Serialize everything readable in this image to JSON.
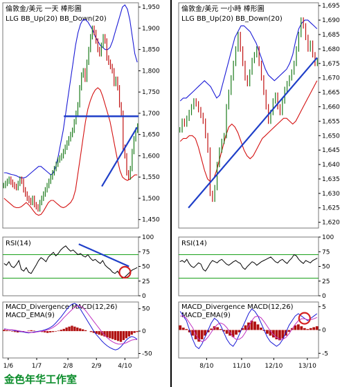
{
  "footer": "金色年华工作室",
  "chart_data": [
    {
      "type": "candlestick",
      "panel": "left-price",
      "title": "倫敦金/美元 一天 棒形圖",
      "indicators_label": "LLG  BB_Up(20)  BB_Down(20)",
      "ylim": [
        1430,
        1960
      ],
      "yticks": [
        "1,950",
        "1,900",
        "1,850",
        "1,800",
        "1,750",
        "1,700",
        "1,650",
        "1,600",
        "1,550",
        "1,500",
        "1,450"
      ],
      "ytick_values": [
        1950,
        1900,
        1850,
        1800,
        1750,
        1700,
        1650,
        1600,
        1550,
        1500,
        1450
      ],
      "x_tick_labels": [
        "1/6",
        "1/7",
        "2/8",
        "2/9",
        "4/10"
      ],
      "close": [
        1530,
        1535,
        1540,
        1545,
        1538,
        1532,
        1528,
        1525,
        1535,
        1545,
        1540,
        1520,
        1510,
        1500,
        1495,
        1490,
        1500,
        1485,
        1480,
        1475,
        1490,
        1500,
        1510,
        1520,
        1530,
        1540,
        1550,
        1560,
        1570,
        1580,
        1590,
        1595,
        1600,
        1610,
        1620,
        1630,
        1640,
        1650,
        1660,
        1680,
        1700,
        1720,
        1760,
        1790,
        1800,
        1780,
        1820,
        1850,
        1880,
        1900,
        1890,
        1870,
        1850,
        1840,
        1860,
        1880,
        1870,
        1830,
        1820,
        1810,
        1800,
        1770,
        1780,
        1760,
        1720,
        1700,
        1620,
        1600,
        1560,
        1550,
        1570,
        1610,
        1640,
        1660,
        1670
      ],
      "bb_upper": [
        1560,
        1560,
        1558,
        1556,
        1555,
        1553,
        1550,
        1548,
        1548,
        1550,
        1555,
        1560,
        1565,
        1570,
        1575,
        1575,
        1570,
        1565,
        1560,
        1555,
        1560,
        1575,
        1600,
        1630,
        1660,
        1700,
        1740,
        1780,
        1820,
        1860,
        1890,
        1910,
        1920,
        1920,
        1915,
        1905,
        1895,
        1880,
        1870,
        1860,
        1855,
        1850,
        1850,
        1855,
        1870,
        1890,
        1910,
        1930,
        1950,
        1955,
        1945,
        1920,
        1880,
        1840,
        1820
      ],
      "bb_lower": [
        1500,
        1495,
        1490,
        1485,
        1480,
        1478,
        1478,
        1480,
        1485,
        1490,
        1485,
        1478,
        1470,
        1463,
        1460,
        1462,
        1470,
        1480,
        1490,
        1495,
        1495,
        1490,
        1485,
        1480,
        1478,
        1480,
        1485,
        1490,
        1500,
        1520,
        1560,
        1600,
        1640,
        1680,
        1710,
        1730,
        1745,
        1755,
        1760,
        1755,
        1740,
        1720,
        1700,
        1680,
        1650,
        1620,
        1590,
        1565,
        1550,
        1545,
        1542,
        1545,
        1550,
        1555,
        1555
      ],
      "annotations": [
        {
          "type": "horizontal-line",
          "y": 1693,
          "color": "#1f3fc8"
        },
        {
          "type": "trendline",
          "from": [
            0.73,
            1528
          ],
          "to": [
            0.99,
            1667
          ],
          "color": "#1f3fc8"
        }
      ]
    },
    {
      "type": "candlestick",
      "panel": "right-price",
      "title": "倫敦金/美元 一小時 棒形圖",
      "indicators_label": "LLG  BB_Up(20)  BB_Down(20)",
      "ylim": [
        1618,
        1696
      ],
      "yticks": [
        "1,695",
        "1,690",
        "1,685",
        "1,680",
        "1,675",
        "1,670",
        "1,665",
        "1,660",
        "1,655",
        "1,650",
        "1,645",
        "1,640",
        "1,635",
        "1,630",
        "1,625",
        "1,620"
      ],
      "ytick_values": [
        1695,
        1690,
        1685,
        1680,
        1675,
        1670,
        1665,
        1660,
        1655,
        1650,
        1645,
        1640,
        1635,
        1630,
        1625,
        1620
      ],
      "x_tick_labels": [
        "8/10",
        "11/10",
        "12/10",
        "13/10"
      ],
      "close": [
        1652,
        1655,
        1654,
        1656,
        1658,
        1660,
        1662,
        1661,
        1659,
        1657,
        1655,
        1650,
        1645,
        1630,
        1628,
        1632,
        1640,
        1645,
        1648,
        1650,
        1660,
        1665,
        1670,
        1675,
        1680,
        1685,
        1680,
        1675,
        1670,
        1668,
        1672,
        1676,
        1678,
        1680,
        1675,
        1670,
        1665,
        1660,
        1655,
        1658,
        1662,
        1664,
        1660,
        1658,
        1662,
        1666,
        1668,
        1670,
        1672,
        1675,
        1680,
        1685,
        1690,
        1688,
        1684,
        1680,
        1682,
        1678,
        1675,
        1676
      ],
      "bb_upper": [
        1662,
        1663,
        1663,
        1664,
        1665,
        1666,
        1667,
        1668,
        1669,
        1668,
        1667,
        1665,
        1663,
        1664,
        1668,
        1672,
        1676,
        1680,
        1684,
        1686,
        1688,
        1688,
        1687,
        1686,
        1684,
        1682,
        1679,
        1676,
        1673,
        1671,
        1670,
        1669,
        1670,
        1671,
        1672,
        1673,
        1675,
        1678,
        1683,
        1687,
        1689,
        1690,
        1690,
        1689,
        1688,
        1687
      ],
      "bb_lower": [
        1648,
        1649,
        1649,
        1650,
        1650,
        1649,
        1646,
        1642,
        1638,
        1635,
        1634,
        1635,
        1638,
        1642,
        1646,
        1650,
        1653,
        1654,
        1653,
        1651,
        1648,
        1645,
        1643,
        1642,
        1643,
        1645,
        1647,
        1649,
        1650,
        1651,
        1652,
        1653,
        1654,
        1655,
        1656,
        1656,
        1655,
        1654,
        1655,
        1657,
        1659,
        1661,
        1663,
        1665,
        1667,
        1669
      ],
      "annotations": [
        {
          "type": "trendline",
          "from": [
            0.07,
            1625
          ],
          "to": [
            0.99,
            1677
          ],
          "color": "#1f3fc8"
        }
      ]
    },
    {
      "type": "line",
      "panel": "left-rsi",
      "title": "RSI(14)",
      "ylim": [
        0,
        100
      ],
      "yticks": [
        "100",
        "75",
        "50",
        "25",
        "0"
      ],
      "ytick_values": [
        100,
        75,
        50,
        25,
        0
      ],
      "reference_lines": [
        70,
        30
      ],
      "values": [
        55,
        52,
        58,
        50,
        48,
        53,
        60,
        45,
        42,
        48,
        40,
        38,
        45,
        52,
        60,
        65,
        62,
        58,
        66,
        70,
        74,
        68,
        72,
        78,
        82,
        85,
        80,
        76,
        78,
        74,
        70,
        72,
        68,
        66,
        70,
        64,
        60,
        62,
        58,
        55,
        60,
        52,
        48,
        45,
        40,
        38,
        42,
        35,
        30,
        32,
        36,
        40,
        44,
        46,
        48
      ],
      "annotations": [
        {
          "type": "trendline",
          "from": [
            0.56,
            88
          ],
          "to": [
            0.93,
            50
          ],
          "color": "#1f3fc8"
        },
        {
          "type": "circle",
          "at": [
            0.9,
            40
          ],
          "color": "#d42020"
        }
      ]
    },
    {
      "type": "line",
      "panel": "right-rsi",
      "title": "RSI(14)",
      "ylim": [
        0,
        100
      ],
      "yticks": [
        "100",
        "75",
        "50",
        "25",
        "0"
      ],
      "ytick_values": [
        100,
        75,
        50,
        25,
        0
      ],
      "reference_lines": [
        70,
        30
      ],
      "values": [
        58,
        60,
        57,
        62,
        55,
        50,
        48,
        52,
        56,
        54,
        45,
        42,
        48,
        55,
        60,
        58,
        56,
        60,
        62,
        58,
        54,
        52,
        55,
        58,
        60,
        57,
        55,
        48,
        45,
        50,
        54,
        58,
        56,
        52,
        55,
        58,
        60,
        62,
        64,
        66,
        62,
        58,
        56,
        60,
        62,
        58,
        55,
        60,
        64,
        70,
        68,
        62,
        58,
        55,
        60,
        58,
        56,
        60,
        62,
        64
      ],
      "annotations": []
    },
    {
      "type": "bar+line",
      "panel": "left-macd",
      "labels": [
        "MACD_Divergence",
        "MACD(12,26)",
        "MACD_EMA(9)"
      ],
      "ylim": [
        -60,
        65
      ],
      "yticks": [
        "50",
        "0",
        "-50"
      ],
      "ytick_values": [
        50,
        0,
        -50
      ],
      "x_tick_labels": [
        "1/6",
        "1/7",
        "2/8",
        "2/9",
        "4/10"
      ],
      "histogram": [
        3,
        2,
        1,
        -1,
        -2,
        -3,
        -2,
        -1,
        0,
        1,
        2,
        1,
        0,
        -1,
        -2,
        -3,
        -4,
        -3,
        -2,
        -1,
        1,
        3,
        5,
        8,
        10,
        12,
        10,
        8,
        6,
        4,
        2,
        0,
        -2,
        -4,
        -6,
        -8,
        -10,
        -12,
        -14,
        -16,
        -18,
        -20,
        -22,
        -24,
        -20,
        -16,
        -12,
        -8,
        -4,
        -2
      ],
      "macd": [
        5,
        4,
        3,
        2,
        1,
        0,
        -1,
        -2,
        -3,
        -4,
        -3,
        -2,
        -1,
        0,
        1,
        3,
        5,
        8,
        12,
        18,
        25,
        32,
        40,
        48,
        55,
        60,
        62,
        58,
        50,
        40,
        30,
        20,
        10,
        0,
        -8,
        -15,
        -22,
        -28,
        -33,
        -37,
        -40,
        -42,
        -40,
        -35,
        -28,
        -20,
        -15,
        -12,
        -14,
        -18
      ],
      "signal": [
        4,
        4,
        3,
        3,
        2,
        1,
        0,
        -1,
        -2,
        -3,
        -3,
        -3,
        -2,
        -1,
        0,
        1,
        3,
        5,
        8,
        12,
        17,
        23,
        30,
        36,
        42,
        48,
        53,
        56,
        56,
        52,
        46,
        38,
        30,
        22,
        14,
        6,
        -2,
        -9,
        -15,
        -20,
        -24,
        -27,
        -29,
        -29,
        -28,
        -26,
        -23,
        -20,
        -19,
        -19
      ],
      "annotations": []
    },
    {
      "type": "bar+line",
      "panel": "right-macd",
      "labels": [
        "MACD_Divergence",
        "MACD(12,26)",
        "MACD_EMA(9)"
      ],
      "ylim": [
        -6,
        6
      ],
      "yticks": [
        "5",
        "0",
        "-5"
      ],
      "ytick_values": [
        5,
        0,
        -5
      ],
      "x_tick_labels": [
        "8/10",
        "11/10",
        "12/10",
        "13/10"
      ],
      "histogram": [
        1,
        0.5,
        0.2,
        -0.5,
        -1.2,
        -2.0,
        -2.5,
        -2.0,
        -1.2,
        -0.5,
        0.3,
        0.8,
        0.6,
        0.2,
        -0.3,
        -0.8,
        -1.2,
        -1.5,
        -1.0,
        -0.5,
        0.4,
        1.0,
        1.6,
        2.0,
        1.8,
        1.2,
        0.5,
        -0.2,
        -0.8,
        -1.2,
        -1.6,
        -2.0,
        -2.2,
        -1.8,
        -1.2,
        -0.4,
        0.4,
        1.0,
        1.2,
        0.8,
        0.4,
        0.2,
        0.4,
        0.6,
        0.8
      ],
      "macd": [
        4,
        3,
        2,
        0,
        -2,
        -3.5,
        -4,
        -3,
        -1.5,
        0,
        1.5,
        2.5,
        2,
        1,
        -0.5,
        -2,
        -3,
        -3.5,
        -2.5,
        -1,
        0.5,
        2,
        3.5,
        4.5,
        4,
        3,
        1.5,
        0,
        -1.5,
        -2.5,
        -3,
        -3.5,
        -3,
        -2,
        -0.5,
        1,
        2,
        3,
        3.5,
        3,
        2.5,
        2,
        2.5,
        3,
        3.5
      ],
      "signal": [
        3,
        3,
        2.5,
        1.5,
        0.5,
        -1,
        -2,
        -2.5,
        -2.2,
        -1.5,
        -0.5,
        0.5,
        1.2,
        1.5,
        1.2,
        0.5,
        -0.5,
        -1.5,
        -2,
        -2,
        -1.5,
        -0.5,
        0.8,
        2,
        2.8,
        3,
        2.6,
        1.8,
        0.8,
        -0.2,
        -1,
        -1.6,
        -2,
        -2,
        -1.6,
        -0.8,
        0.2,
        1.2,
        2,
        2.4,
        2.4,
        2.2,
        2.2,
        2.4,
        2.7
      ],
      "annotations": [
        {
          "type": "circle",
          "at": [
            0.9,
            2.5
          ],
          "color": "#d42020"
        }
      ]
    }
  ]
}
